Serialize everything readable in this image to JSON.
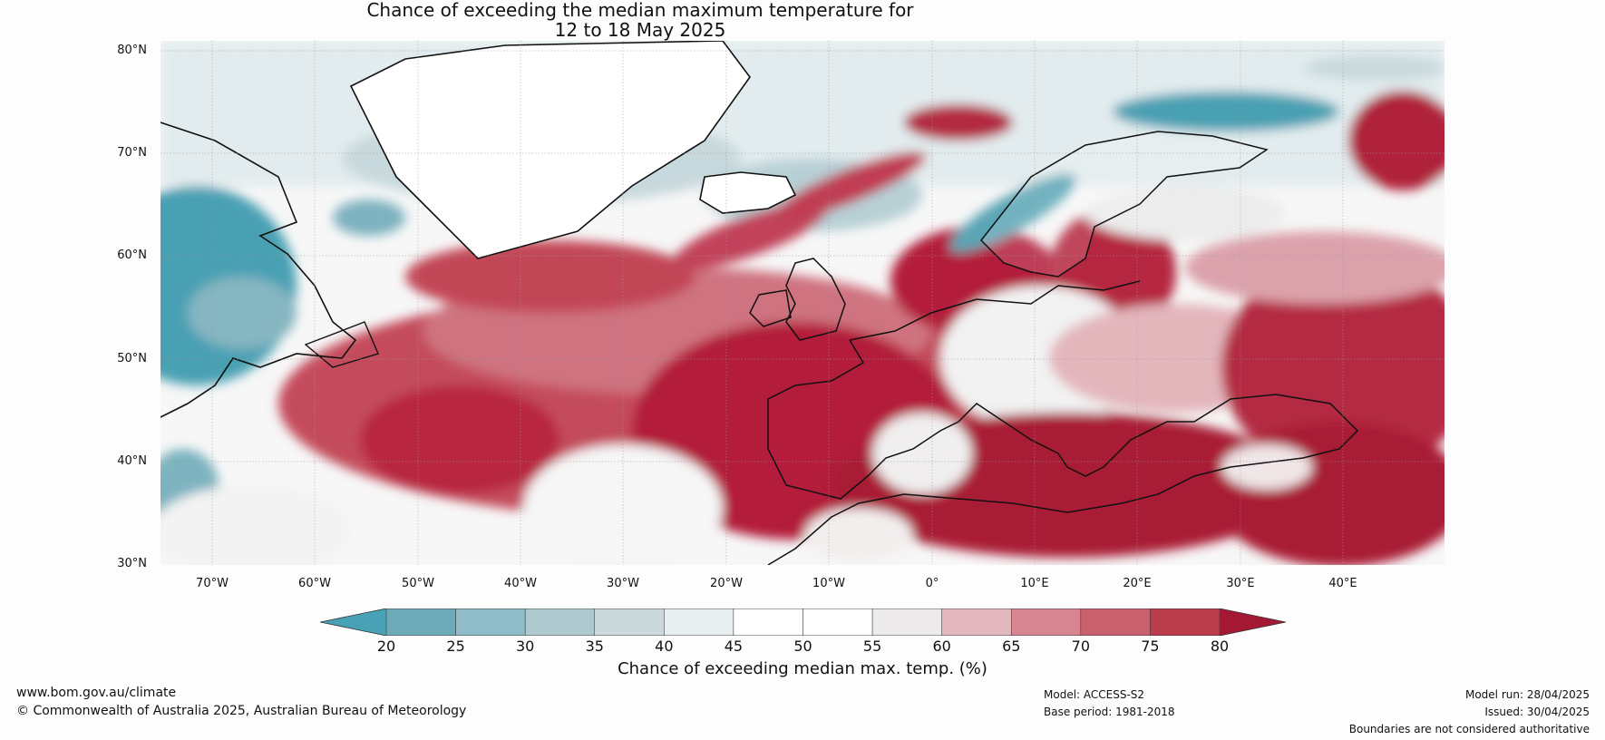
{
  "title": {
    "line1": "Chance of exceeding the median maximum temperature for",
    "line2": "12 to 18 May 2025"
  },
  "map": {
    "region": "North Atlantic and Europe",
    "latitude_labels": [
      "80°N",
      "70°N",
      "60°N",
      "50°N",
      "40°N",
      "30°N"
    ],
    "longitude_labels": [
      "70°W",
      "60°W",
      "50°W",
      "40°W",
      "30°W",
      "20°W",
      "10°W",
      "0°",
      "10°E",
      "20°E",
      "30°E",
      "40°E"
    ]
  },
  "legend": {
    "ticks": [
      "20",
      "25",
      "30",
      "35",
      "40",
      "45",
      "50",
      "55",
      "60",
      "65",
      "70",
      "75",
      "80"
    ],
    "colors": [
      "#49a1b5",
      "#6eabb8",
      "#8fbcc6",
      "#afc9ce",
      "#ccd9dc",
      "#e8eff1",
      "#ffffff",
      "#ffffff",
      "#eceaea",
      "#e2b8be",
      "#d78590",
      "#c9606e",
      "#bb3c4d",
      "#a41834"
    ],
    "title": "Chance of exceeding median max. temp. (%)"
  },
  "footer": {
    "website": "www.bom.gov.au/climate",
    "copyright": "© Commonwealth of Australia 2025, Australian Bureau of Meteorology",
    "model": "Model: ACCESS-S2",
    "base_period": "Base period: 1981-2018",
    "model_run": "Model run: 28/04/2025",
    "issued": "Issued: 30/04/2025",
    "disclaimer": "Boundaries are not considered authoritative"
  }
}
